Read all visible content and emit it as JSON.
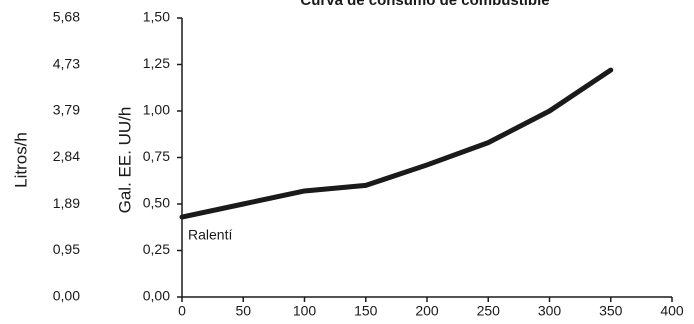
{
  "chart_data": {
    "type": "line",
    "title": "Curva de consumo de combustible",
    "y_label": "Gal. EE. UU/h",
    "y2_label": "Litros/h",
    "annotation": "Ralentí",
    "x": [
      0,
      50,
      100,
      150,
      200,
      250,
      300,
      350
    ],
    "values": [
      0.43,
      0.5,
      0.57,
      0.6,
      0.71,
      0.83,
      1.0,
      1.22
    ],
    "color": "#1a1a1a",
    "xlim": [
      0,
      400
    ],
    "xticks": [
      0,
      50,
      100,
      150,
      200,
      250,
      300,
      350,
      400
    ],
    "ylim": [
      0,
      1.5
    ],
    "yticks": [
      {
        "value": 0,
        "label": "0,00"
      },
      {
        "value": 0.25,
        "label": "0,25"
      },
      {
        "value": 0.5,
        "label": "0,50"
      },
      {
        "value": 0.75,
        "label": "0,75"
      },
      {
        "value": 1.0,
        "label": "1,00"
      },
      {
        "value": 1.25,
        "label": "1,25"
      },
      {
        "value": 1.5,
        "label": "1,50"
      }
    ],
    "y2lim": [
      0,
      5.68
    ],
    "y2ticks": [
      {
        "value": 0,
        "label": "0,00"
      },
      {
        "value": 0.95,
        "label": "0,95"
      },
      {
        "value": 1.89,
        "label": "1,89"
      },
      {
        "value": 2.84,
        "label": "2,84"
      },
      {
        "value": 3.79,
        "label": "3,79"
      },
      {
        "value": 4.73,
        "label": "4,73"
      },
      {
        "value": 5.68,
        "label": "5,68"
      }
    ],
    "grid": false
  }
}
